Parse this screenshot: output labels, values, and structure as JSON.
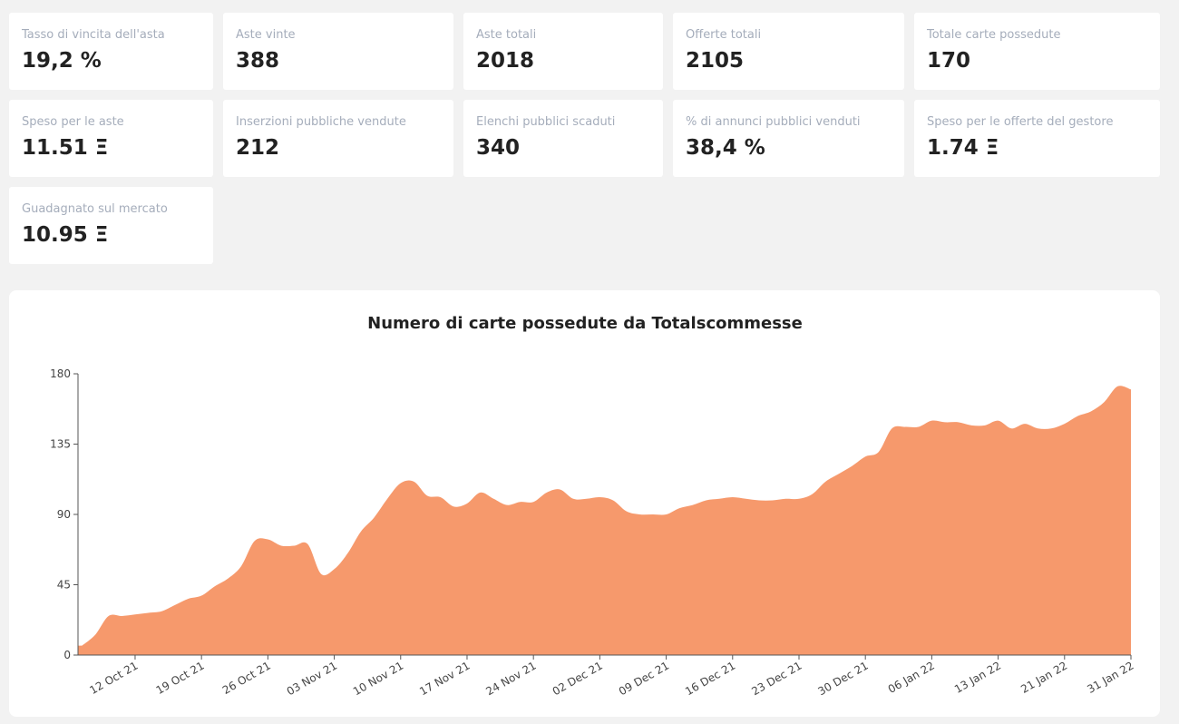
{
  "cards": [
    {
      "label": "Tasso di vincita dell'asta",
      "value": "19,2 %"
    },
    {
      "label": "Aste vinte",
      "value": "388"
    },
    {
      "label": "Aste totali",
      "value": "2018"
    },
    {
      "label": "Offerte totali",
      "value": "2105"
    },
    {
      "label": "Totale carte possedute",
      "value": "170"
    },
    {
      "label": "Speso per le aste",
      "value": "11.51 Ξ"
    },
    {
      "label": "Inserzioni pubbliche vendute",
      "value": "212"
    },
    {
      "label": "Elenchi pubblici scaduti",
      "value": "340"
    },
    {
      "label": "% di annunci pubblici venduti",
      "value": "38,4 %"
    },
    {
      "label": "Speso per le offerte del gestore",
      "value": "1.74 Ξ"
    },
    {
      "label": "Guadagnato sul mercato",
      "value": "10.95 Ξ"
    }
  ],
  "chart_data": {
    "type": "area",
    "title": "Numero di carte possedute da Totalscommesse",
    "categories": [
      null,
      null,
      null,
      null,
      "12 Oct 21",
      null,
      null,
      null,
      null,
      "19 Oct 21",
      null,
      null,
      null,
      null,
      "26 Oct 21",
      null,
      null,
      null,
      null,
      "03 Nov 21",
      null,
      null,
      null,
      null,
      "10 Nov 21",
      null,
      null,
      null,
      null,
      "17 Nov 21",
      null,
      null,
      null,
      null,
      "24 Nov 21",
      null,
      null,
      null,
      null,
      "02 Dec 21",
      null,
      null,
      null,
      null,
      "09 Dec 21",
      null,
      null,
      null,
      null,
      "16 Dec 21",
      null,
      null,
      null,
      null,
      "23 Dec 21",
      null,
      null,
      null,
      null,
      "30 Dec 21",
      null,
      null,
      null,
      null,
      "06 Jan 22",
      null,
      null,
      null,
      null,
      "13 Jan 22",
      null,
      null,
      null,
      null,
      "21 Jan 22",
      null,
      null,
      null,
      null,
      "31 Jan 22"
    ],
    "values": [
      6,
      13,
      25,
      25,
      26,
      27,
      28,
      32,
      36,
      38,
      44,
      49,
      57,
      73,
      74,
      70,
      70,
      71,
      52,
      55,
      65,
      79,
      88,
      100,
      110,
      111,
      102,
      101,
      95,
      97,
      104,
      100,
      96,
      98,
      98,
      104,
      106,
      100,
      100,
      101,
      99,
      92,
      90,
      90,
      90,
      94,
      96,
      99,
      100,
      101,
      100,
      99,
      99,
      100,
      100,
      103,
      111,
      116,
      121,
      127,
      130,
      145,
      146,
      146,
      150,
      149,
      149,
      147,
      147,
      150,
      145,
      148,
      145,
      145,
      148,
      153,
      156,
      162,
      172,
      170
    ],
    "color": "#f6996c",
    "ylim": [
      0,
      180
    ],
    "yticks": [
      0,
      45,
      90,
      135,
      180
    ]
  }
}
